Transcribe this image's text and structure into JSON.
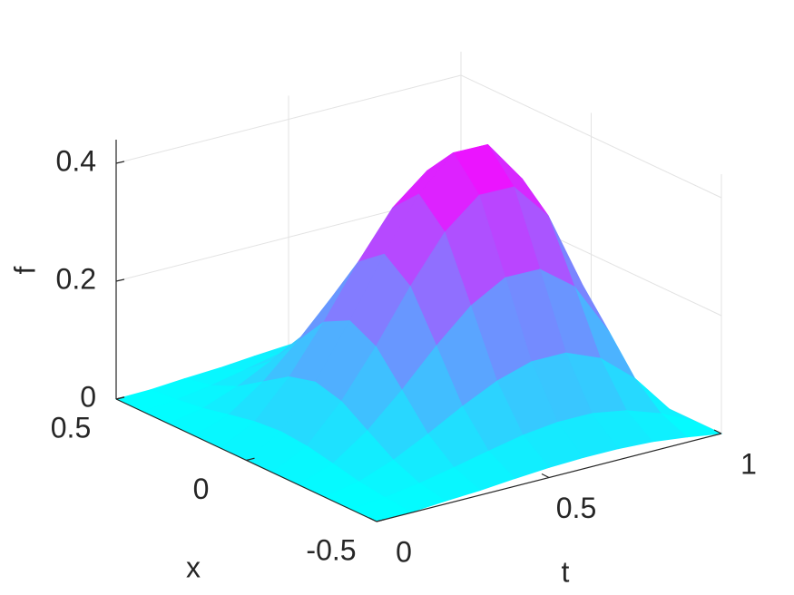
{
  "chart_data": {
    "type": "surface",
    "x_label": "x",
    "y_label": "t",
    "z_label": "f",
    "x": [
      -0.5,
      -0.4,
      -0.3,
      -0.2,
      -0.1,
      0,
      0.1,
      0.2,
      0.3,
      0.4,
      0.5
    ],
    "y": [
      0,
      0.1,
      0.2,
      0.3,
      0.4,
      0.5,
      0.6,
      0.7,
      0.8,
      0.9,
      1
    ],
    "z": [
      [
        0,
        0,
        0,
        0,
        0,
        0,
        0,
        0,
        0,
        0,
        0
      ],
      [
        0.001,
        0.005,
        0.011,
        0.021,
        0.03,
        0.034,
        0.03,
        0.021,
        0.011,
        0.005,
        0.001
      ],
      [
        0.005,
        0.014,
        0.033,
        0.062,
        0.091,
        0.103,
        0.091,
        0.062,
        0.033,
        0.014,
        0.005
      ],
      [
        0.008,
        0.026,
        0.062,
        0.116,
        0.169,
        0.192,
        0.169,
        0.116,
        0.062,
        0.026,
        0.008
      ],
      [
        0.013,
        0.039,
        0.094,
        0.176,
        0.256,
        0.29,
        0.256,
        0.176,
        0.094,
        0.039,
        0.013
      ],
      [
        0.017,
        0.051,
        0.122,
        0.229,
        0.333,
        0.377,
        0.333,
        0.229,
        0.122,
        0.051,
        0.017
      ],
      [
        0.019,
        0.058,
        0.14,
        0.262,
        0.381,
        0.432,
        0.381,
        0.262,
        0.14,
        0.058,
        0.019
      ],
      [
        0.019,
        0.058,
        0.14,
        0.261,
        0.38,
        0.431,
        0.38,
        0.261,
        0.14,
        0.058,
        0.019
      ],
      [
        0.016,
        0.048,
        0.116,
        0.217,
        0.316,
        0.358,
        0.316,
        0.217,
        0.116,
        0.048,
        0.016
      ],
      [
        0.009,
        0.028,
        0.067,
        0.126,
        0.183,
        0.207,
        0.183,
        0.126,
        0.067,
        0.028,
        0.009
      ],
      [
        0,
        0,
        0,
        0,
        0,
        0,
        0,
        0,
        0,
        0,
        0
      ]
    ],
    "xlim": [
      -0.5,
      0.5
    ],
    "ylim": [
      0,
      1
    ],
    "zlim": [
      0,
      0.44
    ],
    "xticks": [
      -0.5,
      0,
      0.5
    ],
    "yticks": [
      0,
      0.5,
      1
    ],
    "zticks": [
      0,
      0.2,
      0.4
    ],
    "colormap": [
      "#00ffff",
      "#ff00ff"
    ],
    "grid": true
  }
}
